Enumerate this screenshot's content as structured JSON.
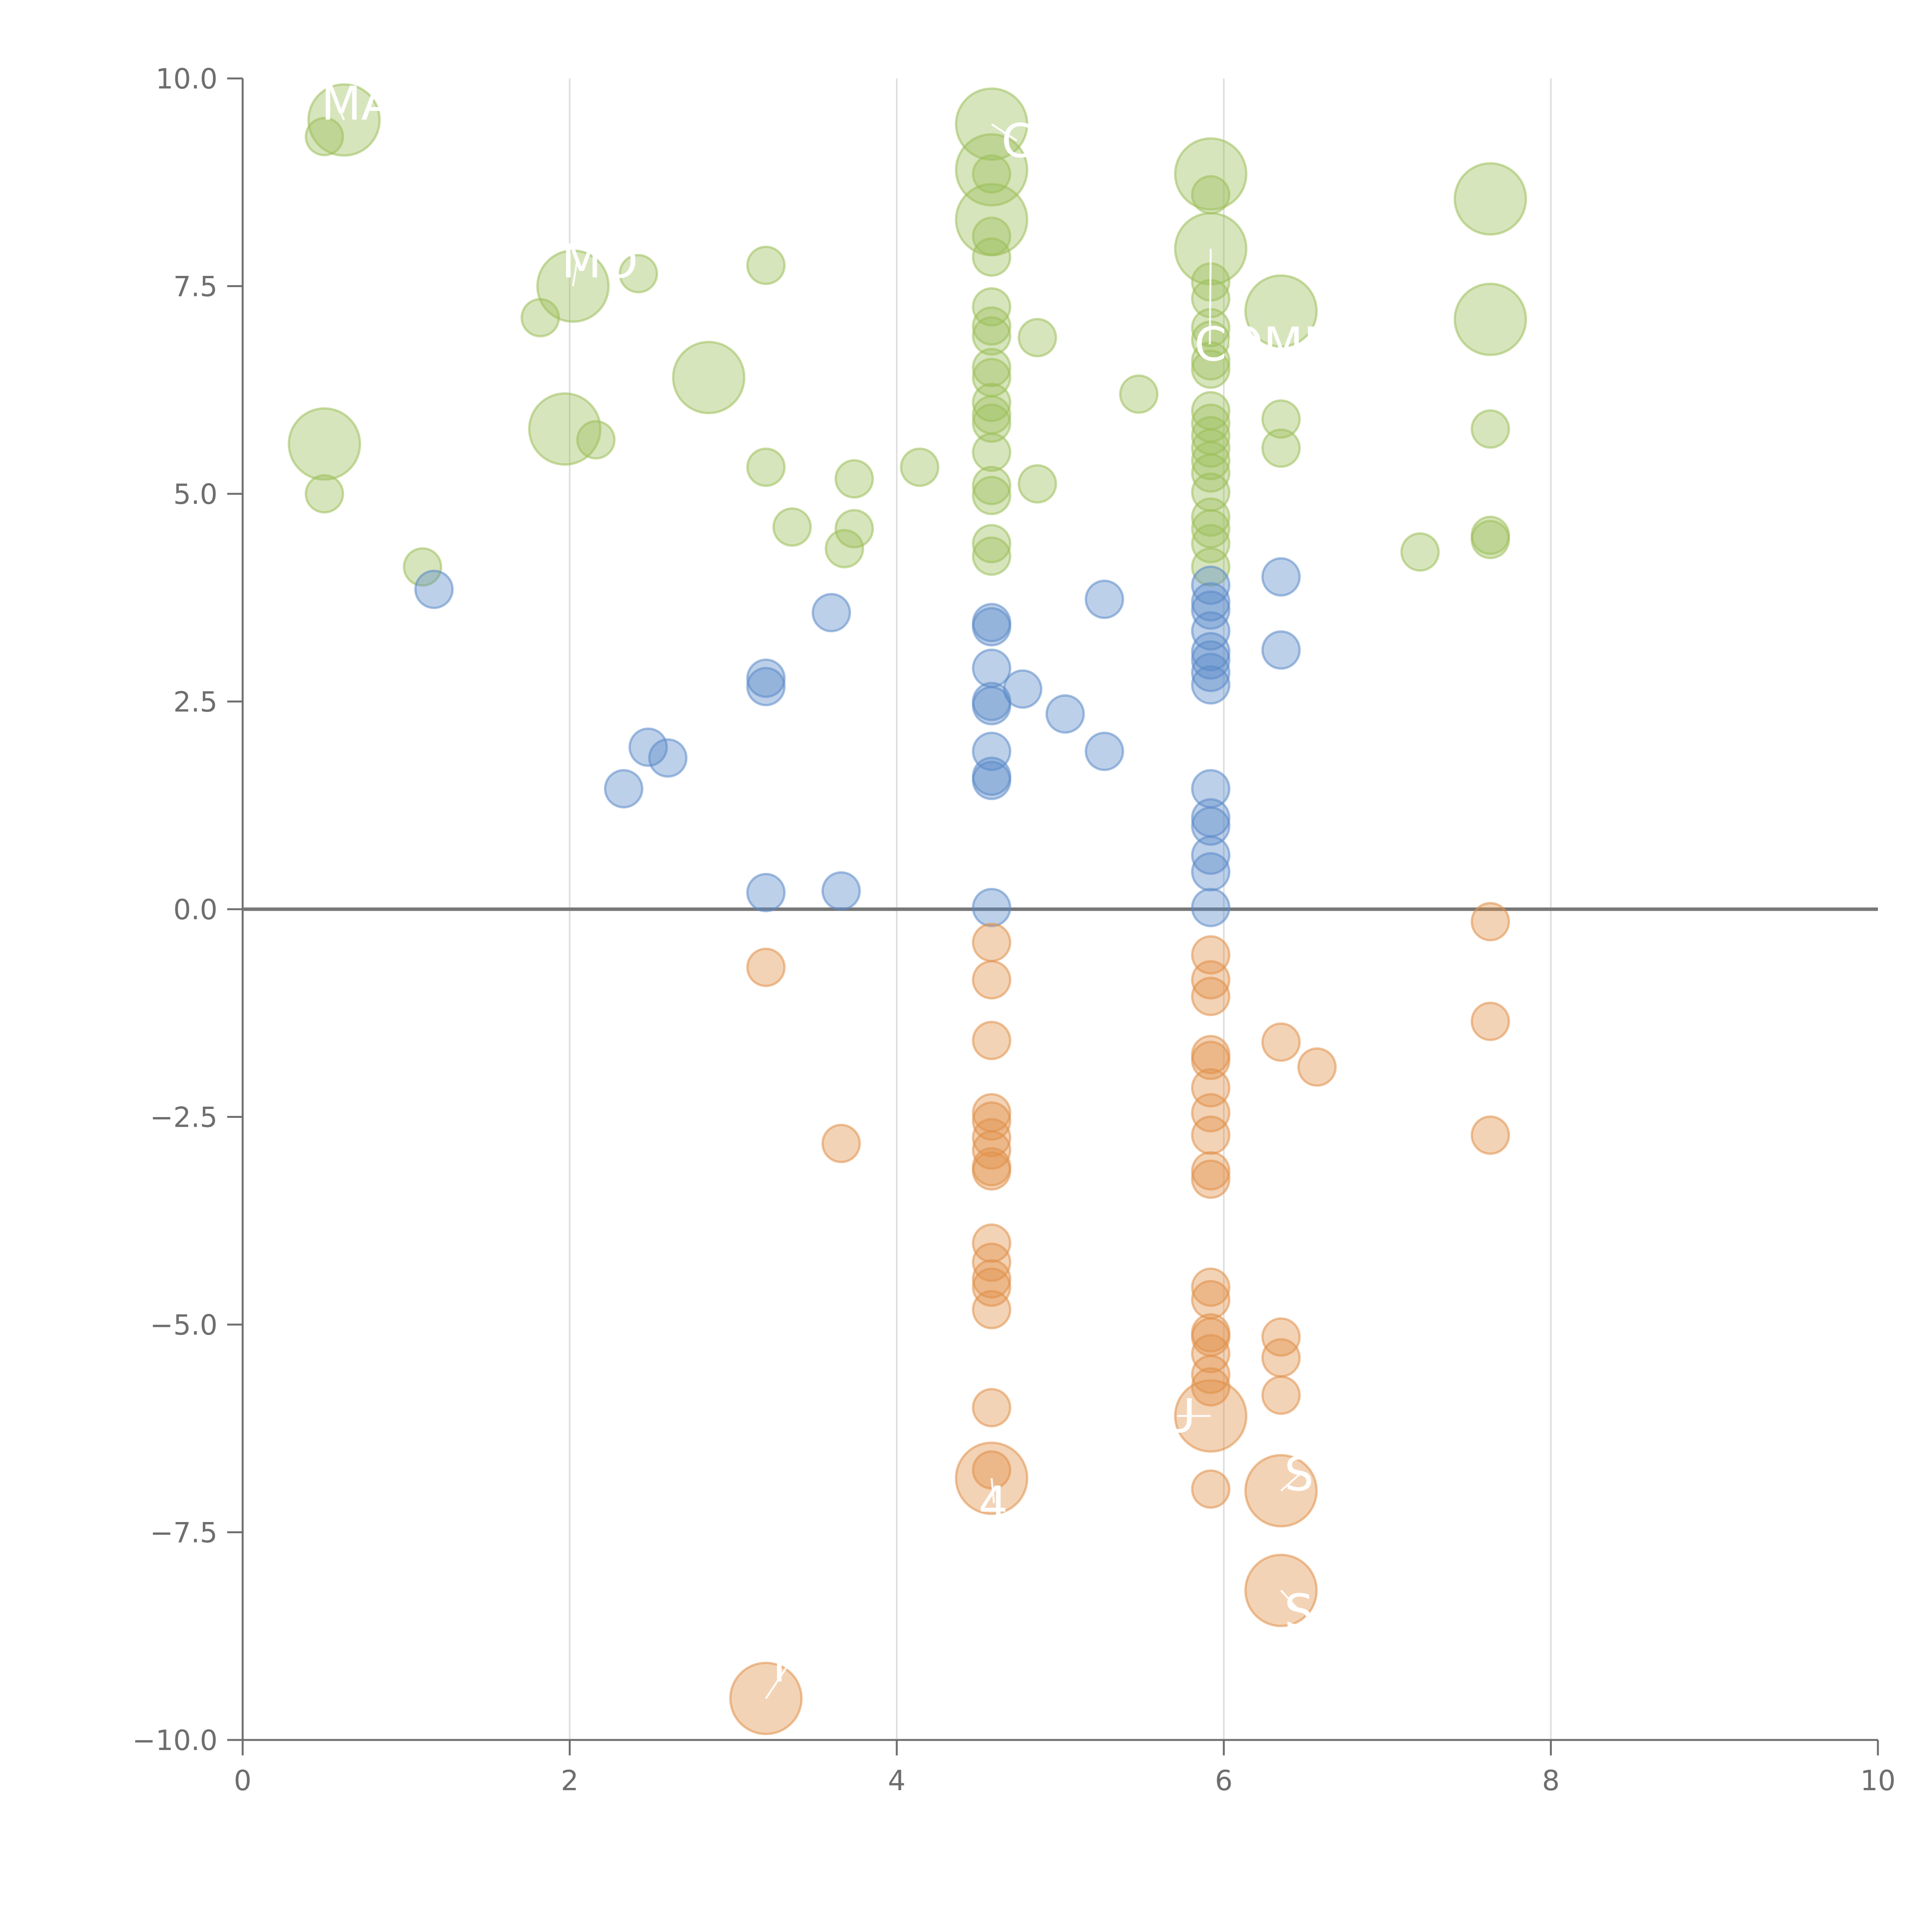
{
  "chart_data": {
    "type": "scatter",
    "title": "",
    "xlabel": "",
    "ylabel": "",
    "xlim": [
      0,
      10
    ],
    "ylim": [
      -10,
      10
    ],
    "x_ticks": [
      "0",
      "2",
      "4",
      "6",
      "8",
      "10"
    ],
    "y_ticks": [
      "10.0",
      "7.5",
      "5.0",
      "2.5",
      "0.0",
      "−2.5",
      "−5.0",
      "−7.5",
      "−10.0"
    ],
    "x_tick_values": [
      0,
      2,
      4,
      6,
      8,
      10
    ],
    "y_tick_values": [
      10,
      7.5,
      5,
      2.5,
      0,
      -2.5,
      -5,
      -7.5,
      -10
    ],
    "baseline_y": 0,
    "colors": {
      "high": "#9cbf5a",
      "mid": "#5b8ac9",
      "low": "#e09048",
      "axis": "#6e6e6e",
      "grid": "#dddddd",
      "baseline": "#777777",
      "label": "#ffffff"
    },
    "series": [
      {
        "name": "high",
        "color": "#9cbf5a",
        "points": [
          {
            "x": 0.5,
            "y": 9.3,
            "s": 1
          },
          {
            "x": 0.62,
            "y": 9.5,
            "s": 2
          },
          {
            "x": 2.02,
            "y": 7.5,
            "s": 2
          },
          {
            "x": 2.42,
            "y": 7.65,
            "s": 1
          },
          {
            "x": 1.82,
            "y": 7.12,
            "s": 1
          },
          {
            "x": 3.2,
            "y": 7.75,
            "s": 1
          },
          {
            "x": 2.85,
            "y": 6.4,
            "s": 2
          },
          {
            "x": 0.5,
            "y": 5.6,
            "s": 2
          },
          {
            "x": 1.97,
            "y": 5.78,
            "s": 2
          },
          {
            "x": 2.16,
            "y": 5.65,
            "s": 1
          },
          {
            "x": 0.5,
            "y": 5.0,
            "s": 1
          },
          {
            "x": 1.1,
            "y": 4.12,
            "s": 1
          },
          {
            "x": 3.2,
            "y": 5.32,
            "s": 1
          },
          {
            "x": 3.74,
            "y": 5.18,
            "s": 1
          },
          {
            "x": 4.14,
            "y": 5.32,
            "s": 1
          },
          {
            "x": 3.36,
            "y": 4.6,
            "s": 1
          },
          {
            "x": 3.74,
            "y": 4.58,
            "s": 1
          },
          {
            "x": 3.68,
            "y": 4.34,
            "s": 1
          },
          {
            "x": 4.58,
            "y": 9.45,
            "s": 2
          },
          {
            "x": 4.58,
            "y": 8.9,
            "s": 2
          },
          {
            "x": 4.58,
            "y": 8.3,
            "s": 2
          },
          {
            "x": 4.58,
            "y": 8.85,
            "s": 1
          },
          {
            "x": 4.58,
            "y": 8.1,
            "s": 1
          },
          {
            "x": 4.58,
            "y": 7.85,
            "s": 1
          },
          {
            "x": 4.58,
            "y": 7.25,
            "s": 1
          },
          {
            "x": 4.58,
            "y": 7.02,
            "s": 1
          },
          {
            "x": 4.58,
            "y": 6.9,
            "s": 1
          },
          {
            "x": 4.58,
            "y": 6.52,
            "s": 1
          },
          {
            "x": 4.58,
            "y": 6.4,
            "s": 1
          },
          {
            "x": 4.58,
            "y": 6.1,
            "s": 1
          },
          {
            "x": 4.58,
            "y": 5.95,
            "s": 1
          },
          {
            "x": 4.58,
            "y": 5.85,
            "s": 1
          },
          {
            "x": 4.58,
            "y": 5.5,
            "s": 1
          },
          {
            "x": 4.58,
            "y": 5.1,
            "s": 1
          },
          {
            "x": 4.58,
            "y": 4.98,
            "s": 1
          },
          {
            "x": 4.58,
            "y": 4.4,
            "s": 1
          },
          {
            "x": 4.58,
            "y": 4.25,
            "s": 1
          },
          {
            "x": 4.86,
            "y": 6.88,
            "s": 1
          },
          {
            "x": 4.86,
            "y": 5.12,
            "s": 1
          },
          {
            "x": 5.48,
            "y": 6.2,
            "s": 1
          },
          {
            "x": 5.92,
            "y": 8.85,
            "s": 2
          },
          {
            "x": 5.92,
            "y": 8.6,
            "s": 1
          },
          {
            "x": 5.92,
            "y": 7.95,
            "s": 2
          },
          {
            "x": 5.92,
            "y": 7.55,
            "s": 1
          },
          {
            "x": 5.92,
            "y": 7.35,
            "s": 1
          },
          {
            "x": 5.92,
            "y": 7.0,
            "s": 1
          },
          {
            "x": 5.92,
            "y": 6.85,
            "s": 1
          },
          {
            "x": 5.92,
            "y": 6.6,
            "s": 1
          },
          {
            "x": 5.92,
            "y": 6.5,
            "s": 1
          },
          {
            "x": 5.92,
            "y": 6.0,
            "s": 1
          },
          {
            "x": 5.92,
            "y": 5.85,
            "s": 1
          },
          {
            "x": 5.92,
            "y": 5.7,
            "s": 1
          },
          {
            "x": 5.92,
            "y": 5.55,
            "s": 1
          },
          {
            "x": 5.92,
            "y": 5.4,
            "s": 1
          },
          {
            "x": 5.92,
            "y": 5.25,
            "s": 1
          },
          {
            "x": 5.92,
            "y": 5.02,
            "s": 1
          },
          {
            "x": 5.92,
            "y": 4.72,
            "s": 1
          },
          {
            "x": 5.92,
            "y": 4.58,
            "s": 1
          },
          {
            "x": 5.92,
            "y": 4.4,
            "s": 1
          },
          {
            "x": 5.92,
            "y": 4.12,
            "s": 1
          },
          {
            "x": 6.35,
            "y": 7.2,
            "s": 2
          },
          {
            "x": 6.35,
            "y": 5.9,
            "s": 1
          },
          {
            "x": 6.35,
            "y": 5.55,
            "s": 1
          },
          {
            "x": 7.2,
            "y": 4.3,
            "s": 1
          },
          {
            "x": 7.63,
            "y": 8.55,
            "s": 2
          },
          {
            "x": 7.63,
            "y": 7.1,
            "s": 2
          },
          {
            "x": 7.63,
            "y": 5.78,
            "s": 1
          },
          {
            "x": 7.63,
            "y": 4.5,
            "s": 1
          },
          {
            "x": 7.63,
            "y": 4.45,
            "s": 1
          }
        ]
      },
      {
        "name": "mid",
        "color": "#5b8ac9",
        "points": [
          {
            "x": 1.17,
            "y": 3.85,
            "s": 1
          },
          {
            "x": 2.48,
            "y": 1.95,
            "s": 1
          },
          {
            "x": 2.6,
            "y": 1.82,
            "s": 1
          },
          {
            "x": 2.33,
            "y": 1.45,
            "s": 1
          },
          {
            "x": 3.2,
            "y": 2.78,
            "s": 1
          },
          {
            "x": 3.2,
            "y": 2.68,
            "s": 1
          },
          {
            "x": 3.2,
            "y": 0.2,
            "s": 1
          },
          {
            "x": 3.6,
            "y": 3.57,
            "s": 1
          },
          {
            "x": 3.66,
            "y": 0.22,
            "s": 1
          },
          {
            "x": 4.58,
            "y": 3.45,
            "s": 1
          },
          {
            "x": 4.58,
            "y": 3.4,
            "s": 1
          },
          {
            "x": 4.58,
            "y": 2.9,
            "s": 1
          },
          {
            "x": 4.58,
            "y": 2.5,
            "s": 1
          },
          {
            "x": 4.58,
            "y": 2.45,
            "s": 1
          },
          {
            "x": 4.58,
            "y": 1.9,
            "s": 1
          },
          {
            "x": 4.58,
            "y": 1.6,
            "s": 1
          },
          {
            "x": 4.58,
            "y": 1.55,
            "s": 1
          },
          {
            "x": 4.58,
            "y": 0.02,
            "s": 1
          },
          {
            "x": 4.77,
            "y": 2.65,
            "s": 1
          },
          {
            "x": 5.03,
            "y": 2.35,
            "s": 1
          },
          {
            "x": 5.27,
            "y": 3.73,
            "s": 1
          },
          {
            "x": 5.27,
            "y": 1.9,
            "s": 1
          },
          {
            "x": 5.92,
            "y": 3.9,
            "s": 1
          },
          {
            "x": 5.92,
            "y": 3.7,
            "s": 1
          },
          {
            "x": 5.92,
            "y": 3.6,
            "s": 1
          },
          {
            "x": 5.92,
            "y": 3.35,
            "s": 1
          },
          {
            "x": 5.92,
            "y": 3.1,
            "s": 1
          },
          {
            "x": 5.92,
            "y": 3.0,
            "s": 1
          },
          {
            "x": 5.92,
            "y": 2.85,
            "s": 1
          },
          {
            "x": 5.92,
            "y": 2.7,
            "s": 1
          },
          {
            "x": 5.92,
            "y": 1.45,
            "s": 1
          },
          {
            "x": 5.92,
            "y": 1.1,
            "s": 1
          },
          {
            "x": 5.92,
            "y": 1.0,
            "s": 1
          },
          {
            "x": 5.92,
            "y": 0.65,
            "s": 1
          },
          {
            "x": 5.92,
            "y": 0.45,
            "s": 1
          },
          {
            "x": 5.92,
            "y": 0.02,
            "s": 1
          },
          {
            "x": 6.35,
            "y": 4.0,
            "s": 1
          },
          {
            "x": 6.35,
            "y": 3.12,
            "s": 1
          }
        ]
      },
      {
        "name": "low",
        "color": "#e09048",
        "points": [
          {
            "x": 3.2,
            "y": -0.7,
            "s": 1
          },
          {
            "x": 3.66,
            "y": -2.82,
            "s": 1
          },
          {
            "x": 3.2,
            "y": -9.5,
            "s": 2
          },
          {
            "x": 4.58,
            "y": -0.4,
            "s": 1
          },
          {
            "x": 4.58,
            "y": -0.85,
            "s": 1
          },
          {
            "x": 4.58,
            "y": -1.58,
            "s": 1
          },
          {
            "x": 4.58,
            "y": -2.45,
            "s": 1
          },
          {
            "x": 4.58,
            "y": -2.55,
            "s": 1
          },
          {
            "x": 4.58,
            "y": -2.75,
            "s": 1
          },
          {
            "x": 4.58,
            "y": -2.9,
            "s": 1
          },
          {
            "x": 4.58,
            "y": -3.1,
            "s": 1
          },
          {
            "x": 4.58,
            "y": -3.15,
            "s": 1
          },
          {
            "x": 4.58,
            "y": -4.02,
            "s": 1
          },
          {
            "x": 4.58,
            "y": -4.25,
            "s": 1
          },
          {
            "x": 4.58,
            "y": -4.45,
            "s": 1
          },
          {
            "x": 4.58,
            "y": -4.55,
            "s": 1
          },
          {
            "x": 4.58,
            "y": -4.82,
            "s": 1
          },
          {
            "x": 4.58,
            "y": -6.0,
            "s": 1
          },
          {
            "x": 4.58,
            "y": -6.85,
            "s": 2
          },
          {
            "x": 4.58,
            "y": -6.75,
            "s": 1
          },
          {
            "x": 5.92,
            "y": -0.55,
            "s": 1
          },
          {
            "x": 5.92,
            "y": -0.85,
            "s": 1
          },
          {
            "x": 5.92,
            "y": -1.05,
            "s": 1
          },
          {
            "x": 5.92,
            "y": -1.75,
            "s": 1
          },
          {
            "x": 5.92,
            "y": -1.82,
            "s": 1
          },
          {
            "x": 5.92,
            "y": -2.15,
            "s": 1
          },
          {
            "x": 5.92,
            "y": -2.45,
            "s": 1
          },
          {
            "x": 5.92,
            "y": -2.72,
            "s": 1
          },
          {
            "x": 5.92,
            "y": -3.15,
            "s": 1
          },
          {
            "x": 5.92,
            "y": -3.25,
            "s": 1
          },
          {
            "x": 5.92,
            "y": -4.55,
            "s": 1
          },
          {
            "x": 5.92,
            "y": -4.7,
            "s": 1
          },
          {
            "x": 5.92,
            "y": -5.1,
            "s": 1
          },
          {
            "x": 5.92,
            "y": -5.15,
            "s": 1
          },
          {
            "x": 5.92,
            "y": -5.35,
            "s": 1
          },
          {
            "x": 5.92,
            "y": -5.6,
            "s": 1
          },
          {
            "x": 5.92,
            "y": -5.75,
            "s": 1
          },
          {
            "x": 5.92,
            "y": -6.1,
            "s": 2
          },
          {
            "x": 5.92,
            "y": -6.98,
            "s": 1
          },
          {
            "x": 6.35,
            "y": -1.6,
            "s": 1
          },
          {
            "x": 6.57,
            "y": -1.9,
            "s": 1
          },
          {
            "x": 6.35,
            "y": -5.15,
            "s": 1
          },
          {
            "x": 6.35,
            "y": -5.4,
            "s": 1
          },
          {
            "x": 6.35,
            "y": -5.85,
            "s": 1
          },
          {
            "x": 6.35,
            "y": -7.0,
            "s": 2
          },
          {
            "x": 6.35,
            "y": -8.2,
            "s": 2
          },
          {
            "x": 7.63,
            "y": -0.15,
            "s": 1
          },
          {
            "x": 7.63,
            "y": -1.35,
            "s": 1
          },
          {
            "x": 7.63,
            "y": -2.72,
            "s": 1
          }
        ]
      }
    ],
    "annotations": [
      {
        "text": "MA",
        "x": 0.48,
        "y": 9.7,
        "ax": 0.62,
        "ay": 9.5
      },
      {
        "text": "MO",
        "x": 1.95,
        "y": 7.8,
        "ax": 2.02,
        "ay": 7.5
      },
      {
        "text": "C",
        "x": 4.64,
        "y": 9.25,
        "ax": 4.58,
        "ay": 9.45
      },
      {
        "text": "COMP",
        "x": 5.82,
        "y": 6.8,
        "ax": 5.92,
        "ay": 7.95
      },
      {
        "text": "U",
        "x": 5.62,
        "y": -6.1,
        "ax": 5.92,
        "ay": -6.1
      },
      {
        "text": "4",
        "x": 4.5,
        "y": -7.15,
        "ax": 4.58,
        "ay": -6.85
      },
      {
        "text": "S",
        "x": 6.37,
        "y": -6.8,
        "ax": 6.35,
        "ay": -7.0
      },
      {
        "text": "S",
        "x": 6.37,
        "y": -8.45,
        "ax": 6.35,
        "ay": -8.2
      },
      {
        "text": "I",
        "x": 3.24,
        "y": -9.1,
        "ax": 3.2,
        "ay": -9.5
      }
    ]
  }
}
